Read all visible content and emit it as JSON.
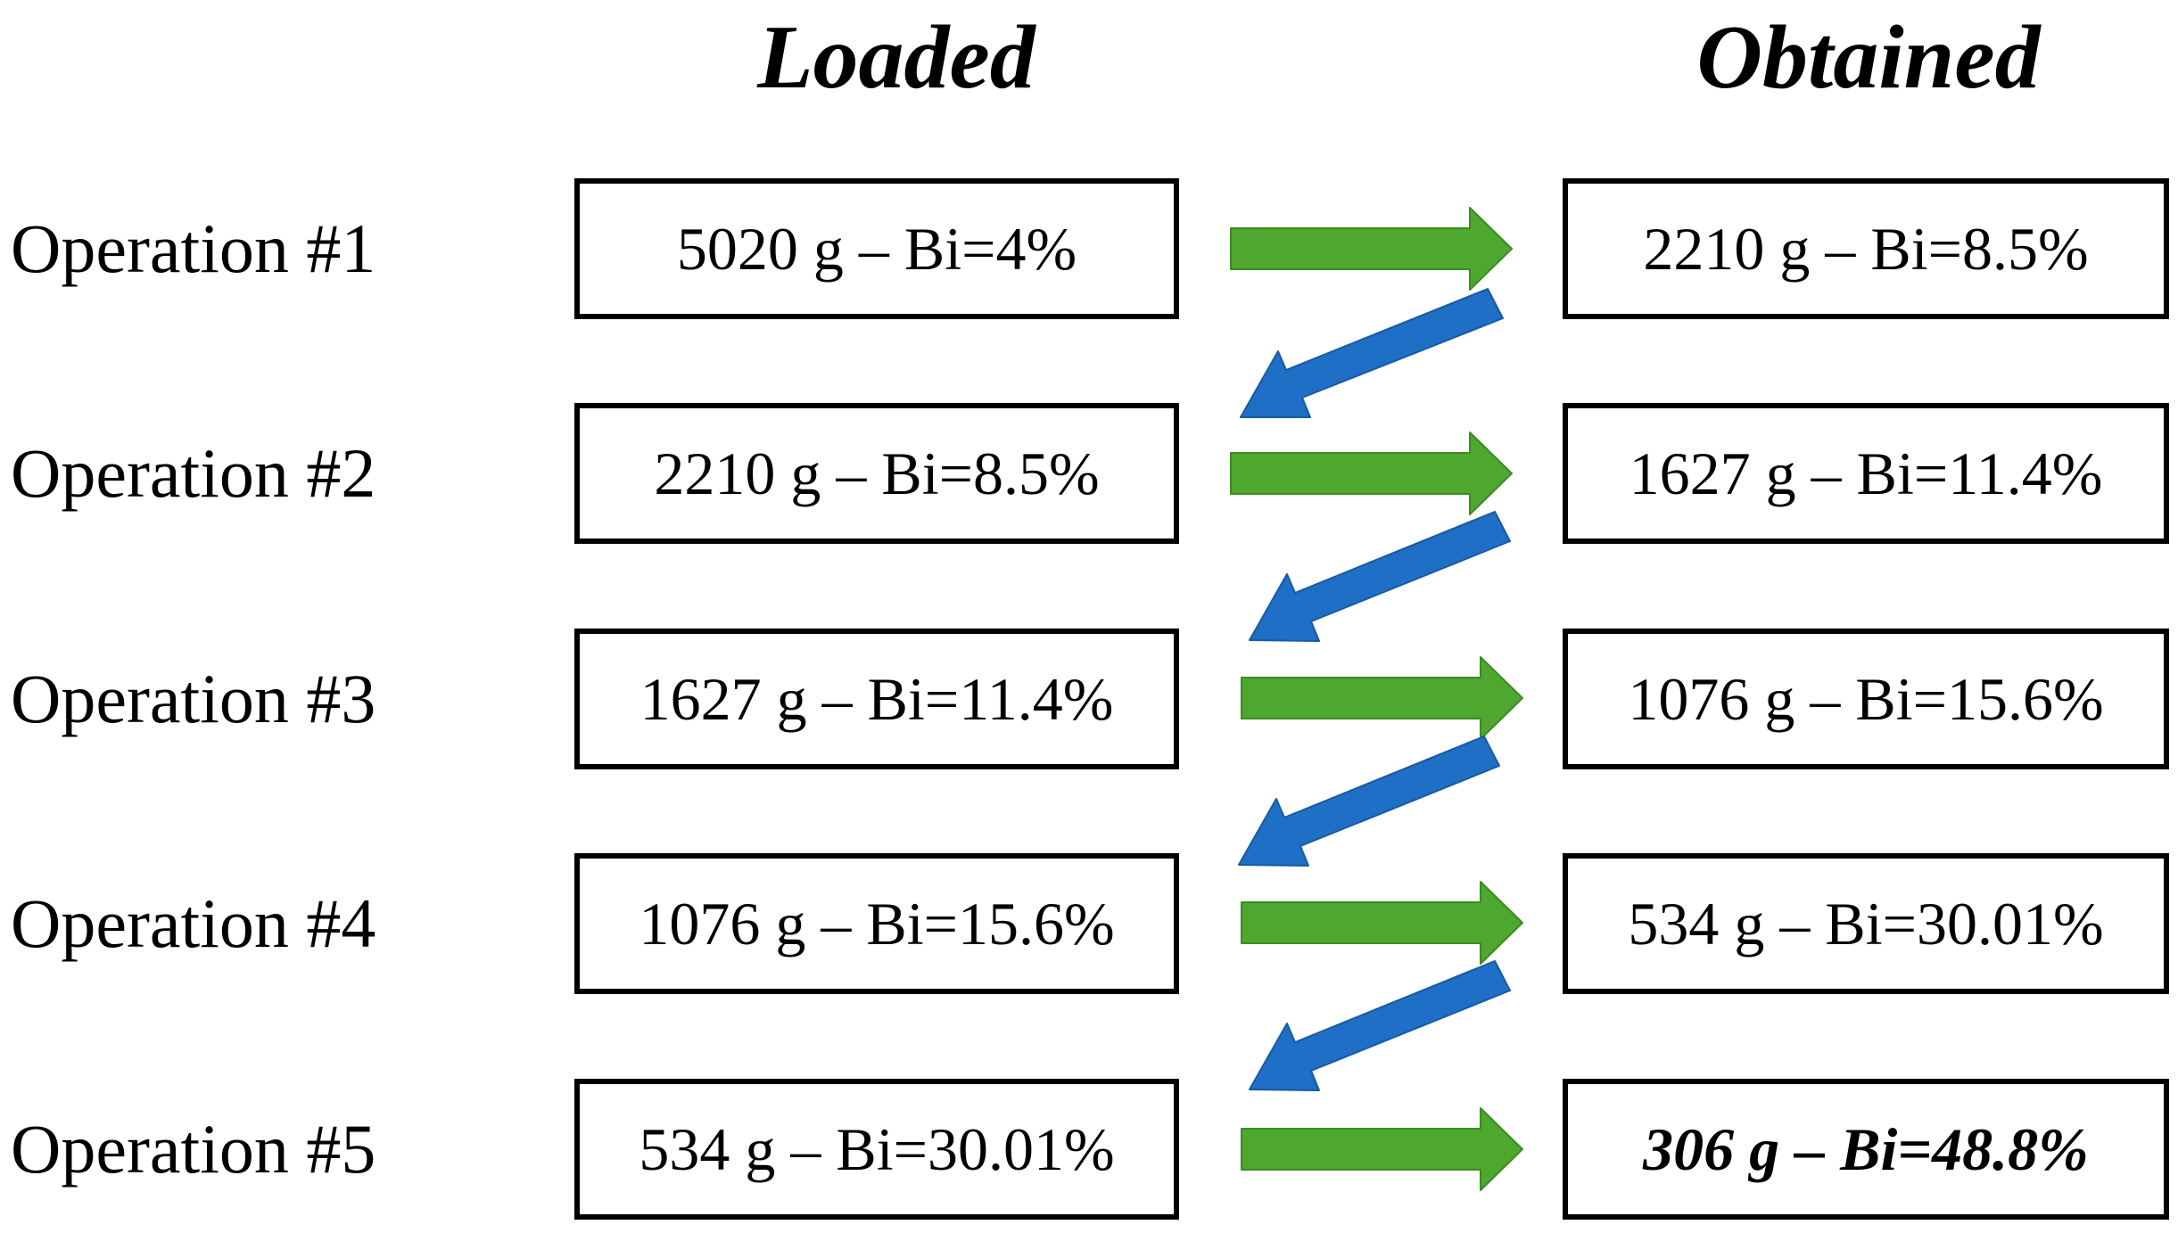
{
  "headers": {
    "loaded": "Loaded",
    "obtained": "Obtained"
  },
  "colors": {
    "green_arrow": "#4EA72E",
    "green_arrow_edge": "#3E8A22",
    "blue_arrow": "#1F6FC6",
    "blue_arrow_edge": "#175AA3",
    "box_border": "#000000"
  },
  "operations": [
    {
      "label": "Operation #1",
      "loaded": "5020 g – Bi=4%",
      "obtained": "2210 g – Bi=8.5%"
    },
    {
      "label": "Operation #2",
      "loaded": "2210 g – Bi=8.5%",
      "obtained": "1627 g – Bi=11.4%"
    },
    {
      "label": "Operation #3",
      "loaded": "1627 g – Bi=11.4%",
      "obtained": "1076 g – Bi=15.6%"
    },
    {
      "label": "Operation #4",
      "loaded": "1076 g – Bi=15.6%",
      "obtained": "534 g – Bi=30.01%"
    },
    {
      "label": "Operation #5",
      "loaded": "534 g – Bi=30.01%",
      "obtained": "306 g – Bi=48.8%"
    }
  ]
}
